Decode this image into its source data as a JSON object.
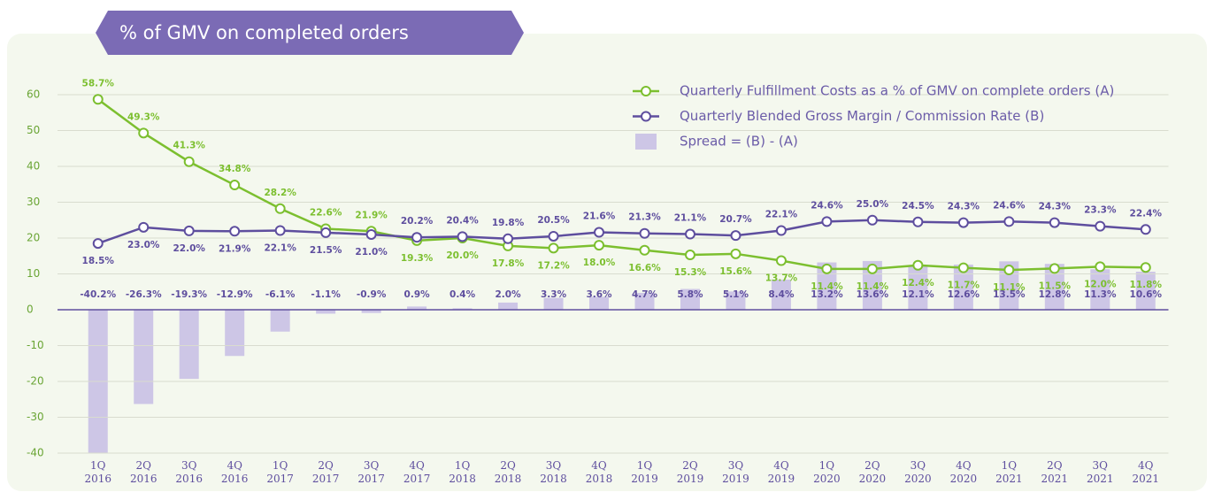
{
  "chart_data": {
    "type": "bar-line",
    "title": "% of GMV on completed orders",
    "categories": [
      "1Q 2016",
      "2Q 2016",
      "3Q 2016",
      "4Q 2016",
      "1Q 2017",
      "2Q 2017",
      "3Q 2017",
      "4Q 2017",
      "1Q 2018",
      "2Q 2018",
      "3Q 2018",
      "4Q 2018",
      "1Q 2019",
      "2Q 2019",
      "3Q 2019",
      "4Q 2019",
      "1Q 2020",
      "2Q 2020",
      "3Q 2020",
      "4Q 2020",
      "1Q 2021",
      "2Q 2021",
      "3Q 2021",
      "4Q 2021"
    ],
    "series": [
      {
        "name": "Quarterly Fulfillment Costs as a % of GMV on complete orders (A)",
        "kind": "line",
        "color": "#7cbf2f",
        "values": [
          58.7,
          49.3,
          41.3,
          34.8,
          28.2,
          22.6,
          21.9,
          19.3,
          20.0,
          17.8,
          17.2,
          18.0,
          16.6,
          15.3,
          15.6,
          13.7,
          11.4,
          11.4,
          12.4,
          11.7,
          11.1,
          11.5,
          12.0,
          11.8
        ],
        "value_labels": [
          "58.7%",
          "49.3%",
          "41.3%",
          "34.8%",
          "28.2%",
          "22.6%",
          "21.9%",
          "19.3%",
          "20.0%",
          "17.8%",
          "17.2%",
          "18.0%",
          "16.6%",
          "15.3%",
          "15.6%",
          "13.7%",
          "11.4%",
          "11.4%",
          "12.4%",
          "11.7%",
          "11.1%",
          "11.5%",
          "12.0%",
          "11.8%"
        ]
      },
      {
        "name": "Quarterly Blended Gross Margin / Commission Rate (B)",
        "kind": "line",
        "color": "#5e4e9e",
        "values": [
          18.5,
          23.0,
          22.0,
          21.9,
          22.1,
          21.5,
          21.0,
          20.2,
          20.4,
          19.8,
          20.5,
          21.6,
          21.3,
          21.1,
          20.7,
          22.1,
          24.6,
          25.0,
          24.5,
          24.3,
          24.6,
          24.3,
          23.3,
          22.4
        ],
        "value_labels": [
          "18.5%",
          "23.0%",
          "22.0%",
          "21.9%",
          "22.1%",
          "21.5%",
          "21.0%",
          "20.2%",
          "20.4%",
          "19.8%",
          "20.5%",
          "21.6%",
          "21.3%",
          "21.1%",
          "20.7%",
          "22.1%",
          "24.6%",
          "25.0%",
          "24.5%",
          "24.3%",
          "24.6%",
          "24.3%",
          "23.3%",
          "22.4%"
        ]
      },
      {
        "name": "Spread = (B) - (A)",
        "kind": "bar",
        "color": "#cdc6e6",
        "values": [
          -40.2,
          -26.3,
          -19.3,
          -12.9,
          -6.1,
          -1.1,
          -0.9,
          0.9,
          0.4,
          2.0,
          3.3,
          3.6,
          4.7,
          5.8,
          5.1,
          8.4,
          13.2,
          13.6,
          12.1,
          12.6,
          13.5,
          12.8,
          11.3,
          10.6
        ],
        "value_labels": [
          "-40.2%",
          "-26.3%",
          "-19.3%",
          "-12.9%",
          "-6.1%",
          "-1.1%",
          "-0.9%",
          "0.9%",
          "0.4%",
          "2.0%",
          "3.3%",
          "3.6%",
          "4.7%",
          "5.8%",
          "5.1%",
          "8.4%",
          "13.2%",
          "13.6%",
          "12.1%",
          "12.6%",
          "13.5%",
          "12.8%",
          "11.3%",
          "10.6%"
        ]
      }
    ],
    "ylim": [
      -40,
      60
    ],
    "yticks": [
      -40,
      -30,
      -20,
      -10,
      0,
      10,
      20,
      30,
      40,
      50,
      60
    ],
    "grid": true,
    "legend": "top-right"
  }
}
